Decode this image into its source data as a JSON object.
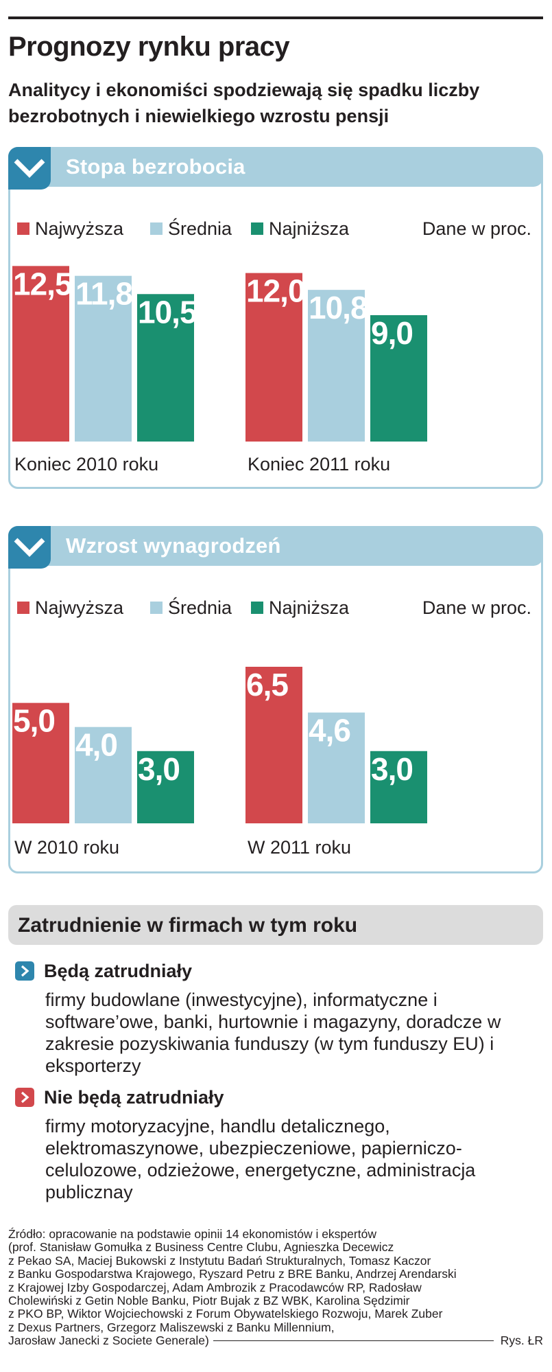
{
  "title": "Prognozy rynku pracy",
  "subtitle": "Analitycy i ekonomiści spodziewają się spadku liczby bezrobotnych i niewielkiego wzrostu pensji",
  "colors": {
    "najwyzsza": "#d2484c",
    "srednia": "#a9cfde",
    "najnizsza": "#1a9070",
    "accent": "#2e86ad",
    "panel": "#a9cfde"
  },
  "icons": {
    "panel_tab": "chevron-down-icon",
    "employ_yes": "chevron-right-icon",
    "employ_no": "chevron-right-icon"
  },
  "chart_data": [
    {
      "type": "bar",
      "title": "Stopa bezrobocia",
      "unit": "Dane w proc.",
      "categories": [
        "Koniec 2010 roku",
        "Koniec 2011 roku"
      ],
      "series": [
        {
          "name": "Najwyższa",
          "values": [
            12.5,
            12.0
          ],
          "labels": [
            "12,5",
            "12,0"
          ]
        },
        {
          "name": "Średnia",
          "values": [
            11.8,
            10.8
          ],
          "labels": [
            "11,8",
            "10,8"
          ]
        },
        {
          "name": "Najniższa",
          "values": [
            10.5,
            9.0
          ],
          "labels": [
            "10,5",
            "9,0"
          ]
        }
      ],
      "ylim": [
        0,
        13.3
      ]
    },
    {
      "type": "bar",
      "title": "Wzrost wynagrodzeń",
      "unit": "Dane w proc.",
      "categories": [
        "W 2010 roku",
        "W 2011 roku"
      ],
      "series": [
        {
          "name": "Najwyższa",
          "values": [
            5.0,
            6.5
          ],
          "labels": [
            "5,0",
            "6,5"
          ]
        },
        {
          "name": "Średnia",
          "values": [
            4.0,
            4.6
          ],
          "labels": [
            "4,0",
            "4,6"
          ]
        },
        {
          "name": "Najniższa",
          "values": [
            3.0,
            3.0
          ],
          "labels": [
            "3,0",
            "3,0"
          ]
        }
      ],
      "ylim": [
        0,
        6.5
      ]
    }
  ],
  "employment": {
    "title": "Zatrudnienie w firmach w tym roku",
    "yes_title": "Będą zatrudniały",
    "yes_text": "firmy budowlane (inwestycyjne), informatyczne i software’owe, banki, hurtownie i magazyny, doradcze w zakresie pozyskiwania funduszy (w tym funduszy EU) i eksporterzy",
    "no_title": "Nie będą zatrudniały",
    "no_text": "firmy motoryzacyjne, handlu detalicznego, elektromaszynowe, ubezpieczeniowe, papierniczo-celulozowe, odzieżowe, energetyczne, administracja publicznay"
  },
  "source": {
    "lines": [
      "Źródło: opracowanie na podstawie opinii 14 ekonomistów i ekspertów",
      "(prof. Stanisław Gomułka z Business Centre Clubu, Agnieszka Decewicz",
      "z Pekao SA, Maciej Bukowski z Instytutu Badań Strukturalnych, Tomasz Kaczor",
      "z Banku Gospodarstwa Krajowego, Ryszard Petru z BRE Banku, Andrzej Arendarski",
      "z Krajowej Izby Gospodarczej, Adam Ambrozik z Pracodawców RP, Radosław",
      "Cholewiński z Getin Noble Banku, Piotr Bujak z BZ WBK,  Karolina Sędzimir",
      "z PKO BP, Wiktor Wojciechowski z Forum Obywatelskiego Rozwoju, Marek Zuber",
      "z Dexus Partners, Grzegorz Maliszewski z Banku Millennium,"
    ],
    "last_line": "Jarosław Janecki z Societe Generale)",
    "credit": "Rys. ŁR"
  }
}
